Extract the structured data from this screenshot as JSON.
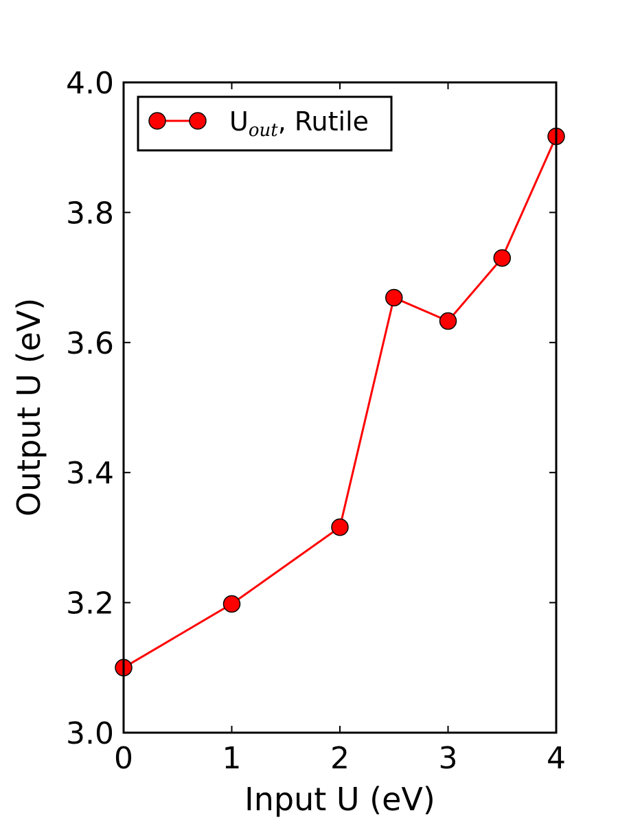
{
  "chart_data": {
    "type": "line",
    "title": "",
    "xlabel": "Input U (eV)",
    "ylabel": "Output U (eV)",
    "xlim": [
      0,
      4
    ],
    "ylim": [
      3.0,
      4.0
    ],
    "xticks": [
      "0",
      "1",
      "2",
      "3",
      "4"
    ],
    "yticks": [
      "3.0",
      "3.2",
      "3.4",
      "3.6",
      "3.8",
      "4.0"
    ],
    "grid": false,
    "legend_position": "top-left",
    "series": [
      {
        "name_main": "U",
        "name_sub": "out",
        "name_suffix": ", Rutile",
        "color": "#ff0000",
        "marker": "circle",
        "x": [
          0,
          1,
          2,
          2.5,
          3,
          3.5,
          4
        ],
        "y": [
          3.1,
          3.198,
          3.316,
          3.669,
          3.633,
          3.73,
          3.917
        ]
      }
    ]
  }
}
